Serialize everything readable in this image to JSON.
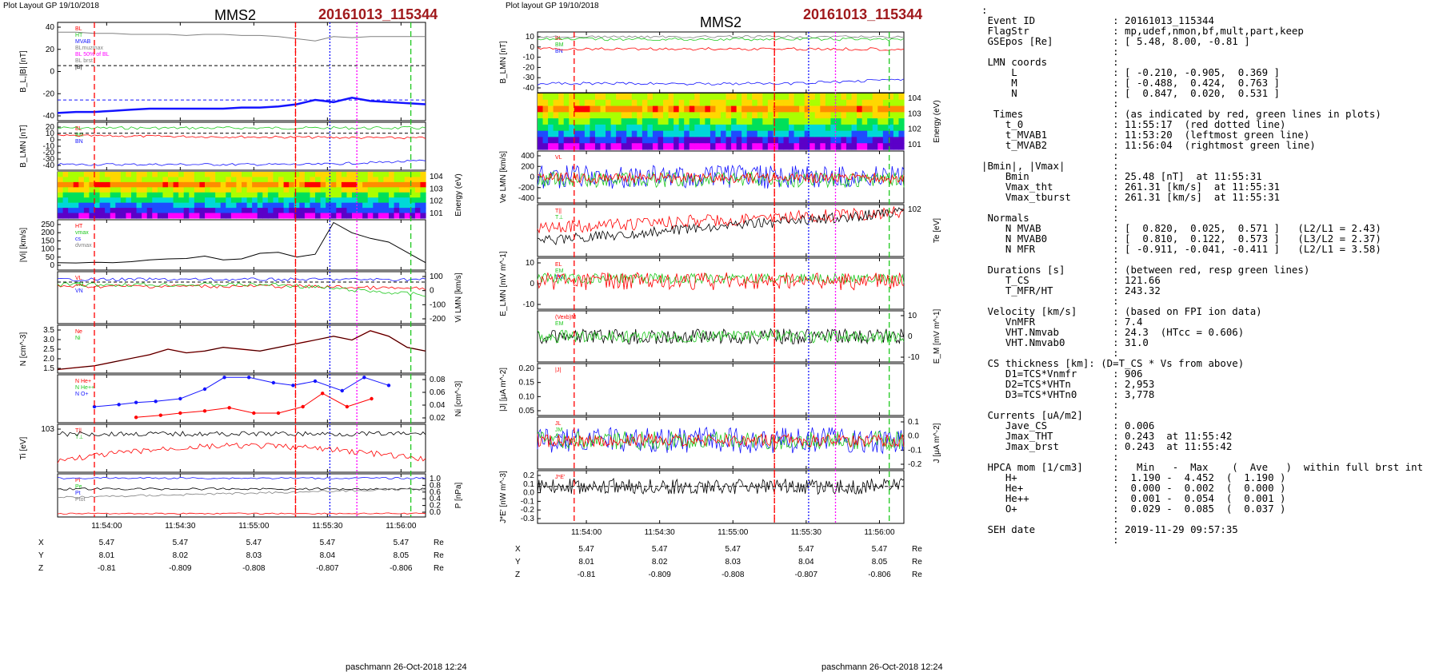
{
  "left_figure": {
    "header_left": "Plot Layout GP 19/10/2018",
    "title": "MMS2",
    "event": "20161013_115344",
    "footer": "paschmann 26-Oct-2018 12:24"
  },
  "mid_figure": {
    "header_left": "Plot layout GP 19/10/2018",
    "title": "MMS2",
    "event": "20161013_115344",
    "footer": "paschmann 26-Oct-2018 12:24"
  },
  "time_ticks": [
    "11:54:00",
    "11:54:30",
    "11:55:00",
    "11:55:30",
    "11:56:00"
  ],
  "position_table": {
    "rows": [
      {
        "label": "X",
        "values": [
          "5.47",
          "5.47",
          "5.47",
          "5.47",
          "5.47"
        ],
        "unit": "Re"
      },
      {
        "label": "Y",
        "values": [
          "8.01",
          "8.02",
          "8.03",
          "8.04",
          "8.05"
        ],
        "unit": "Re"
      },
      {
        "label": "Z",
        "values": [
          "-0.81",
          "-0.809",
          "-0.808",
          "-0.807",
          "-0.806"
        ],
        "unit": "Re"
      }
    ]
  },
  "colors": {
    "red": "#ff0000",
    "green": "#1ec81e",
    "blue": "#1414ff",
    "magenta": "#ff00ff",
    "gray": "#808080",
    "title_red": "#a0191c"
  },
  "chart_data": [
    {
      "type": "line",
      "figure": "left",
      "panels": [
        {
          "ylabel": "B_L,|B| [nT]",
          "ticks": [
            "40",
            "20",
            "0",
            "-20",
            "-40"
          ],
          "legend": [
            "BL",
            "HT",
            "MVAB",
            "BLmuzmax",
            "BL 50% of BL",
            "BL brst",
            "|B|"
          ],
          "series": [
            {
              "name": "|B|",
              "values": [
                36,
                36,
                35,
                35,
                34,
                34,
                34,
                33,
                34,
                34,
                33,
                33,
                32,
                30,
                28,
                32,
                31,
                32,
                32,
                32,
                32
              ]
            },
            {
              "name": "BL brst",
              "values": [
                -38,
                -37,
                -37,
                -36,
                -35,
                -34,
                -34,
                -34,
                -34,
                -34,
                -33,
                -33,
                -32,
                -30,
                -26,
                -28,
                -24,
                -27,
                -28,
                -29,
                -30
              ]
            }
          ]
        },
        {
          "ylabel": "B_LMN [nT]",
          "ticks": [
            "20",
            "10",
            "0",
            "-10",
            "-20",
            "-30",
            "-40"
          ],
          "legend": [
            "BL",
            "BM",
            "BN"
          ]
        },
        {
          "ylabel": "Energy (eV)",
          "ticks": [
            "10^4",
            "10^3",
            "10^2",
            "10^1"
          ]
        },
        {
          "ylabel": "|Vi| [km/s]",
          "ticks": [
            "250",
            "200",
            "150",
            "100",
            "50",
            "0"
          ],
          "legend": [
            "HT",
            "vmax",
            "cs",
            "dvmax"
          ],
          "series": [
            {
              "name": "|Vi|",
              "values": [
                40,
                38,
                42,
                40,
                45,
                55,
                60,
                62,
                75,
                55,
                60,
                90,
                95,
                70,
                85,
                255,
                200,
                170,
                150,
                95,
                40
              ]
            }
          ]
        },
        {
          "ylabel": "Vi LMN [km/s]",
          "ticks": [
            "100",
            "0",
            "-100",
            "-200"
          ],
          "legend": [
            "VL",
            "VM",
            "VN"
          ]
        },
        {
          "ylabel": "N [cm^-3]",
          "ticks": [
            "3.5",
            "3.0",
            "2.5",
            "2.0",
            "1.5"
          ],
          "legend": [
            "Ne",
            "Ni"
          ],
          "series": [
            {
              "name": "Ni",
              "values": [
                1.4,
                1.5,
                1.6,
                1.8,
                2.0,
                2.2,
                2.5,
                2.3,
                2.4,
                2.6,
                2.5,
                2.4,
                2.6,
                2.8,
                3.0,
                3.2,
                3.0,
                3.5,
                3.2,
                2.6,
                2.4
              ]
            }
          ]
        },
        {
          "ylabel": "Ni [cm^-3]",
          "ticks": [
            "0.08",
            "0.06",
            "0.04",
            "0.02"
          ],
          "legend": [
            "N He+",
            "N He++",
            "N O+"
          ],
          "series": [
            {
              "name": "O+",
              "x": [
                "11:53:55",
                "11:54:05",
                "11:54:12",
                "11:54:20",
                "11:54:30",
                "11:54:40",
                "11:54:48",
                "11:54:58",
                "11:55:08",
                "11:55:16",
                "11:55:25",
                "11:55:36",
                "11:55:45",
                "11:55:55"
              ],
              "values": [
                0.03,
                0.034,
                0.038,
                0.04,
                0.045,
                0.063,
                0.085,
                0.085,
                0.075,
                0.07,
                0.078,
                0.06,
                0.085,
                0.07
              ]
            },
            {
              "name": "He+",
              "x": [
                "11:54:12",
                "11:54:22",
                "11:54:30",
                "11:54:40",
                "11:54:50",
                "11:55:00",
                "11:55:10",
                "11:55:20",
                "11:55:28",
                "11:55:38",
                "11:55:48"
              ],
              "values": [
                0.01,
                0.014,
                0.018,
                0.022,
                0.028,
                0.018,
                0.018,
                0.03,
                0.055,
                0.03,
                0.045
              ]
            }
          ]
        },
        {
          "ylabel": "Ti [eV]",
          "ticks": [
            "10^3"
          ],
          "legend": [
            "T||",
            "T⊥"
          ]
        },
        {
          "ylabel": "P [nPa]",
          "ticks": [
            "1.0",
            "0.8",
            "0.6",
            "0.4",
            "0.2",
            "0.0"
          ],
          "legend": [
            "Pi",
            "Pe",
            "Pt",
            "Ptot"
          ]
        }
      ],
      "event_lines": [
        {
          "color": "red",
          "time": "11:53:55",
          "style": "dashed"
        },
        {
          "color": "red",
          "time": "11:55:17",
          "style": "dotted"
        },
        {
          "color": "red",
          "time": "11:55:17",
          "style": "dashed"
        },
        {
          "color": "blue",
          "time": "11:55:31",
          "style": "dotted"
        },
        {
          "color": "magenta",
          "time": "11:55:42",
          "style": "dotted"
        },
        {
          "color": "green",
          "time": "11:56:04",
          "style": "dashed"
        }
      ]
    },
    {
      "type": "line",
      "figure": "middle",
      "panels": [
        {
          "ylabel": "B_LMN [nT]",
          "ticks": [
            "10",
            "0",
            "-10",
            "-20",
            "-30",
            "-40"
          ],
          "legend": [
            "BL",
            "BM",
            "BN"
          ]
        },
        {
          "ylabel": "Energy (eV)",
          "ticks": [
            "10^4",
            "10^3",
            "10^2",
            "10^1"
          ]
        },
        {
          "ylabel": "Ve LMN [km/s]",
          "ticks": [
            "400",
            "200",
            "0",
            "-200",
            "-400"
          ],
          "legend": [
            "VL"
          ]
        },
        {
          "ylabel": "Te [eV]",
          "ticks": [
            "10^2"
          ],
          "legend": [
            "T||",
            "T⊥"
          ]
        },
        {
          "ylabel": "E_LMN [mV m^-1]",
          "ticks": [
            "10",
            "0",
            "-10"
          ],
          "legend": [
            "EL",
            "EM",
            "EN"
          ]
        },
        {
          "ylabel": "E_M [mV m^-1]",
          "ticks": [
            "10",
            "0",
            "-10"
          ],
          "legend": [
            "(Vexb)M",
            "EM"
          ]
        },
        {
          "ylabel": "|J| [μA m^-2]",
          "ticks": [
            "0.20",
            "0.15",
            "0.10",
            "0.05"
          ],
          "legend": [
            "|J|"
          ]
        },
        {
          "ylabel": "J [μA m^-2]",
          "ticks": [
            "0.1",
            "0.0",
            "-0.1",
            "-0.2"
          ],
          "legend": [
            "JL",
            "JM",
            "JN"
          ]
        },
        {
          "ylabel": "J*E' [nW m^-3]",
          "ticks": [
            "0.2",
            "0.1",
            "0.0",
            "-0.1",
            "-0.2",
            "-0.3"
          ],
          "legend": [
            "J*E'"
          ]
        }
      ]
    }
  ],
  "text_panel": {
    "lines": [
      ":",
      " Event ID             : 20161013_115344",
      " FlagStr              : mp,udef,nmon,bf,mult,part,keep",
      " GSEpos [Re]          : [ 5.48, 8.00, -0.81 ]",
      "                      :",
      " LMN coords           :",
      "     L                : [ -0.210, -0.905,  0.369 ]",
      "     M                : [ -0.488,  0.424,  0.763 ]",
      "     N                : [  0.847,  0.020,  0.531 ]",
      "                      :",
      "  Times               : (as indicated by red, green lines in plots)",
      "    t_0               : 11:55:17  (red dotted line)",
      "    t_MVAB1           : 11:53:20  (leftmost green line)",
      "    t_MVAB2           : 11:56:04  (rightmost green line)",
      "                      :",
      "|Bmin|, |Vmax|        :",
      "    Bmin              : 25.48 [nT]  at 11:55:31",
      "    Vmax_tht          : 261.31 [km/s]  at 11:55:31",
      "    Vmax_tburst       : 261.31 [km/s]  at 11:55:31",
      "                      :",
      " Normals              :",
      "    N MVAB            : [  0.820,  0.025,  0.571 ]   (L2/L1 = 2.43)",
      "    N MVAB0           : [  0.810,  0.122,  0.573 ]   (L3/L2 = 2.37)",
      "    N MFR             : [ -0.911, -0.041, -0.411 ]   (L2/L1 = 3.58)",
      "                      :",
      " Durations [s]        : (between red, resp green lines)",
      "    T_CS              : 121.66",
      "    T_MFR/HT          : 243.32",
      "                      :",
      " Velocity [km/s]      : (based on FPI ion data)",
      "    VnMFR             : 7.4",
      "    VHT.Nmvab         : 24.3  (HTcc = 0.606)",
      "    VHT.Nmvab0        : 31.0",
      "                      :",
      " CS thickness [km]: (D=T_CS * Vs from above)",
      "    D1=TCS*Vnmfr      : 906",
      "    D2=TCS*VHTn       : 2,953",
      "    D3=TCS*VHTn0      : 3,778",
      "                      :",
      " Currents [uA/m2]     :",
      "    Jave_CS           : 0.006",
      "    Jmax_THT          : 0.243  at 11:55:42",
      "    Jmax_brst         : 0.243  at 11:55:42",
      "                      :",
      " HPCA mom [1/cm3]     :   Min   -  Max    (  Ave   )  within full brst int",
      "    H+                :  1.190 -  4.452  (  1.190 )",
      "    He+               :  0.000 -  0.002  (  0.000 )",
      "    He++              :  0.001 -  0.054  (  0.001 )",
      "    O+                :  0.029 -  0.085  (  0.037 )",
      "                      :",
      " SEH date             : 2019-11-29 09:57:35",
      "                      :"
    ]
  }
}
